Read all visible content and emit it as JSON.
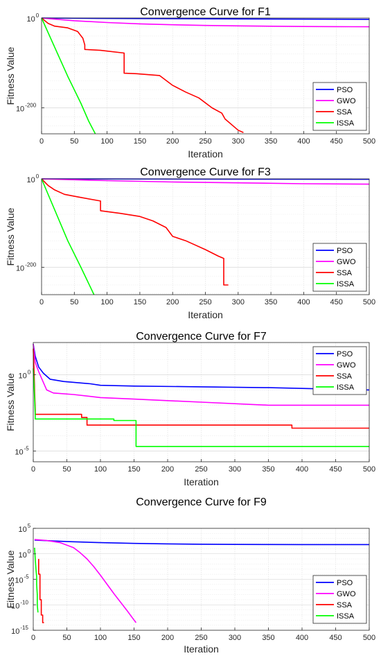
{
  "figure": {
    "background": "#ffffff"
  },
  "series_colors": {
    "PSO": "#0000ff",
    "GWO": "#ff00ff",
    "SSA": "#ff0000",
    "ISSA": "#00ff00"
  },
  "chart_data": [
    {
      "type": "line",
      "title": "Convergence Curve for F1",
      "xlabel": "Iteration",
      "ylabel": "Fitness Value",
      "xlim": [
        0,
        500
      ],
      "xticks": [
        0,
        50,
        100,
        150,
        200,
        250,
        300,
        350,
        400,
        450,
        500
      ],
      "ylim_log10": [
        -258,
        0
      ],
      "yscale": "log",
      "yticks": [
        {
          "exp": 0,
          "label": "10",
          "sup": "0"
        },
        {
          "exp": -200,
          "label": "10",
          "sup": "-200"
        }
      ],
      "grid": true,
      "legend_position": "bottom-right",
      "series": [
        {
          "name": "PSO",
          "color": "#0000ff",
          "x": [
            0,
            100,
            300,
            500
          ],
          "y_log10": [
            0,
            -1,
            -2,
            -3
          ]
        },
        {
          "name": "GWO",
          "color": "#ff00ff",
          "x": [
            0,
            50,
            100,
            150,
            200,
            250,
            300,
            350,
            400,
            450,
            500
          ],
          "y_log10": [
            0,
            -6,
            -10,
            -13,
            -15,
            -16.5,
            -17.5,
            -18.2,
            -18.8,
            -19.2,
            -19.5
          ]
        },
        {
          "name": "SSA",
          "color": "#ff0000",
          "x": [
            0,
            10,
            20,
            40,
            55,
            63,
            66,
            66,
            90,
            126,
            126,
            145,
            180,
            200,
            220,
            240,
            260,
            275,
            280,
            300,
            308
          ],
          "y_log10": [
            0,
            -12,
            -18,
            -22,
            -30,
            -45,
            -60,
            -70,
            -72,
            -78,
            -123,
            -124,
            -128,
            -150,
            -165,
            -178,
            -200,
            -212,
            -225,
            -250,
            -255
          ]
        },
        {
          "name": "ISSA",
          "color": "#00ff00",
          "x": [
            0,
            20,
            40,
            60,
            72,
            82
          ],
          "y_log10": [
            0,
            -65,
            -130,
            -190,
            -230,
            -258
          ]
        }
      ]
    },
    {
      "type": "line",
      "title": "Convergence Curve for F3",
      "xlabel": "Iteration",
      "ylabel": "Fitness Value",
      "xlim": [
        0,
        500
      ],
      "xticks": [
        0,
        50,
        100,
        150,
        200,
        250,
        300,
        350,
        400,
        450,
        500
      ],
      "ylim_log10": [
        -262,
        0
      ],
      "yscale": "log",
      "yticks": [
        {
          "exp": 0,
          "label": "10",
          "sup": "0"
        },
        {
          "exp": -200,
          "label": "10",
          "sup": "-200"
        }
      ],
      "grid": true,
      "legend_position": "bottom-right",
      "series": [
        {
          "name": "PSO",
          "color": "#0000ff",
          "x": [
            0,
            500
          ],
          "y_log10": [
            0,
            -1
          ]
        },
        {
          "name": "GWO",
          "color": "#ff00ff",
          "x": [
            0,
            100,
            200,
            300,
            400,
            500
          ],
          "y_log10": [
            0,
            -4,
            -7,
            -9,
            -11,
            -12
          ]
        },
        {
          "name": "SSA",
          "color": "#ff0000",
          "x": [
            0,
            10,
            20,
            35,
            60,
            90,
            90,
            120,
            150,
            170,
            190,
            200,
            220,
            250,
            270,
            275,
            278,
            278,
            285
          ],
          "y_log10": [
            0,
            -15,
            -25,
            -35,
            -42,
            -50,
            -72,
            -78,
            -85,
            -95,
            -110,
            -130,
            -140,
            -160,
            -175,
            -178,
            -180,
            -240,
            -240
          ]
        },
        {
          "name": "ISSA",
          "color": "#00ff00",
          "x": [
            0,
            20,
            40,
            60,
            80
          ],
          "y_log10": [
            0,
            -70,
            -140,
            -200,
            -262
          ]
        }
      ]
    },
    {
      "type": "line",
      "title": "Convergence Curve for F7",
      "xlabel": "Iteration",
      "ylabel": "Fitness Value",
      "xlim": [
        0,
        500
      ],
      "xticks": [
        0,
        50,
        100,
        150,
        200,
        250,
        300,
        350,
        400,
        450,
        500
      ],
      "ylim_log10": [
        -5.7,
        2.1
      ],
      "yscale": "log",
      "yticks": [
        {
          "exp": 0,
          "label": "10",
          "sup": "0"
        },
        {
          "exp": -5,
          "label": "10",
          "sup": "-5"
        }
      ],
      "grid": true,
      "legend_position": "top-right",
      "series": [
        {
          "name": "PSO",
          "color": "#0000ff",
          "x": [
            0,
            3,
            8,
            15,
            25,
            45,
            85,
            100,
            150,
            250,
            350,
            450,
            500
          ],
          "y_log10": [
            2.0,
            1.2,
            0.5,
            0.1,
            -0.3,
            -0.45,
            -0.6,
            -0.7,
            -0.75,
            -0.8,
            -0.85,
            -0.95,
            -1.0
          ]
        },
        {
          "name": "GWO",
          "color": "#ff00ff",
          "x": [
            0,
            3,
            8,
            15,
            20,
            30,
            60,
            100,
            150,
            250,
            350,
            450,
            500
          ],
          "y_log10": [
            2.0,
            0.8,
            0.2,
            -0.5,
            -1.0,
            -1.2,
            -1.3,
            -1.5,
            -1.6,
            -1.8,
            -2.0,
            -2.0,
            -2.0
          ]
        },
        {
          "name": "SSA",
          "color": "#ff0000",
          "x": [
            0,
            1,
            2,
            3,
            3,
            72,
            72,
            80,
            80,
            385,
            385,
            500
          ],
          "y_log10": [
            1.7,
            0.5,
            -1.0,
            -2.3,
            -2.6,
            -2.6,
            -2.8,
            -2.8,
            -3.3,
            -3.3,
            -3.5,
            -3.5
          ]
        },
        {
          "name": "ISSA",
          "color": "#00ff00",
          "x": [
            0,
            1,
            2,
            3,
            3,
            120,
            120,
            153,
            153,
            500
          ],
          "y_log10": [
            0.4,
            -0.5,
            -1.5,
            -2.7,
            -2.9,
            -2.9,
            -3.0,
            -3.0,
            -4.7,
            -4.7
          ]
        }
      ]
    },
    {
      "type": "line",
      "title": "Convergence Curve for F9",
      "xlabel": "Iteration",
      "ylabel": "Fitness Value",
      "xlim": [
        0,
        500
      ],
      "xticks": [
        0,
        50,
        100,
        150,
        200,
        250,
        300,
        350,
        400,
        450,
        500
      ],
      "ylim_log10": [
        -15,
        5
      ],
      "yscale": "log",
      "yticks": [
        {
          "exp": 5,
          "label": "10",
          "sup": "5"
        },
        {
          "exp": 0,
          "label": "10",
          "sup": "0"
        },
        {
          "exp": -5,
          "label": "10",
          "sup": "-5"
        },
        {
          "exp": -10,
          "label": "10",
          "sup": "-10"
        },
        {
          "exp": -15,
          "label": "10",
          "sup": "-15"
        }
      ],
      "grid": true,
      "legend_position": "bottom-right",
      "series": [
        {
          "name": "PSO",
          "color": "#0000ff",
          "x": [
            2,
            50,
            100,
            150,
            200,
            250,
            300,
            350,
            400,
            450,
            500
          ],
          "y_log10": [
            2.7,
            2.4,
            2.2,
            2.05,
            1.95,
            1.88,
            1.85,
            1.83,
            1.82,
            1.82,
            1.82
          ]
        },
        {
          "name": "GWO",
          "color": "#ff00ff",
          "x": [
            2,
            20,
            40,
            60,
            70,
            80,
            90,
            100,
            110,
            120,
            130,
            140,
            150,
            153
          ],
          "y_log10": [
            2.8,
            2.6,
            2.2,
            1.2,
            0.2,
            -1.0,
            -2.5,
            -4.2,
            -6.0,
            -7.8,
            -9.5,
            -11.2,
            -13.0,
            -13.5
          ]
        },
        {
          "name": "SSA",
          "color": "#ff0000",
          "x": [
            8,
            8,
            10,
            10,
            12,
            12,
            14,
            14,
            16
          ],
          "y_log10": [
            -1.0,
            -4.0,
            -4.0,
            -9.0,
            -9.0,
            -12.0,
            -12.0,
            -13.5,
            -13.5
          ]
        },
        {
          "name": "ISSA",
          "color": "#00ff00",
          "x": [
            2,
            3,
            4,
            5,
            5,
            6,
            6,
            7
          ],
          "y_log10": [
            1.2,
            -1.0,
            -3.0,
            -4.5,
            -6.0,
            -8.0,
            -10.0,
            -11.5
          ]
        }
      ]
    }
  ]
}
